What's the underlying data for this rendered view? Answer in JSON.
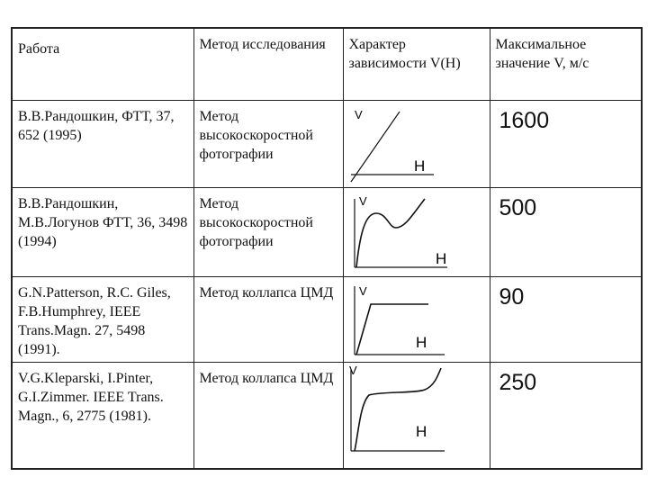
{
  "headers": {
    "work": "Работа",
    "method": "Метод исследования",
    "character": "Характер зависимости V(H)",
    "max": "Максимальное значение V, м/с"
  },
  "rows": [
    {
      "work": "В.В.Рандошкин, ФТТ, 37, 652 (1995)",
      "method": "Метод высокоскоростной фотографии",
      "max_value": "1600",
      "graph": {
        "shape": "linear",
        "ylabel": "V",
        "xlabel": "H"
      }
    },
    {
      "work": "В.В.Рандошкин, М.В.Логунов ФТТ, 36, 3498 (1994)",
      "method": "Метод высокоскоростной фотографии",
      "max_value": "500",
      "graph": {
        "shape": "peak-dip-rise",
        "ylabel": "V",
        "xlabel": "H"
      }
    },
    {
      "work": "G.N.Patterson, R.C. Giles, F.B.Humphrey, IEEE Trans.Magn. 27, 5498 (1991).",
      "method": "Метод коллапса ЦМД",
      "max_value": "90",
      "graph": {
        "shape": "saturation",
        "ylabel": "V",
        "xlabel": "H"
      }
    },
    {
      "work": "V.G.Kleparski, I.Pinter, G.I.Zimmer. IEEE Trans. Magn., 6, 2775 (1981).",
      "method": "Метод коллапса ЦМД",
      "max_value": "250",
      "graph": {
        "shape": "step-plateau-rise",
        "ylabel": "V",
        "xlabel": "H"
      }
    }
  ]
}
